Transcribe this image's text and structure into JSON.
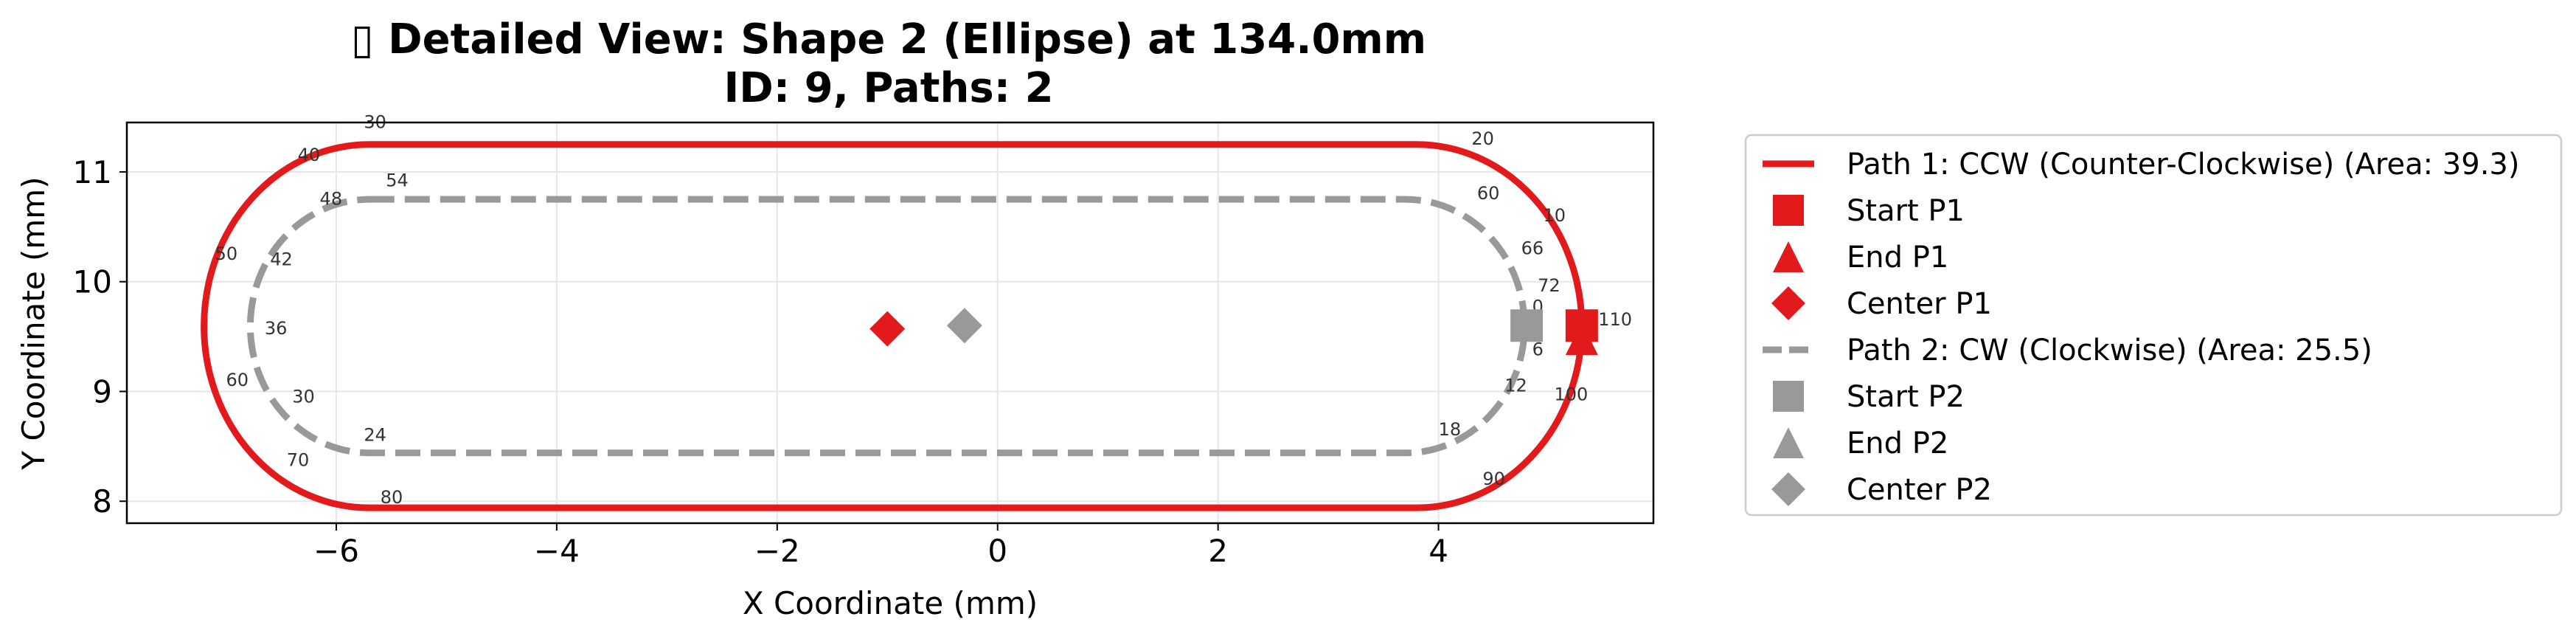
{
  "chart_data": {
    "type": "line",
    "title_line1": "▯ Detailed View: Shape 2 (Ellipse) at 134.0mm",
    "title_line2": "ID: 9, Paths: 2",
    "xlabel": "X Coordinate (mm)",
    "ylabel": "Y Coordinate (mm)",
    "xlim": [
      -7.9,
      5.95
    ],
    "ylim": [
      7.8,
      11.45
    ],
    "xticks": [
      -6,
      -4,
      -2,
      0,
      2,
      4
    ],
    "xtick_labels": [
      "−6",
      "−4",
      "−2",
      "0",
      "2",
      "4"
    ],
    "yticks": [
      8,
      9,
      10,
      11
    ],
    "ytick_labels": [
      "8",
      "9",
      "10",
      "11"
    ],
    "grid": true,
    "legend_position": "outside-right",
    "colors": {
      "path1": "#e31a1c",
      "path2": "#999999"
    },
    "series": [
      {
        "name": "Path 1: CCW (Counter-Clockwise) (Area: 39.3)",
        "style": "solid",
        "color": "#e31a1c",
        "straight_top": {
          "x": [
            -5.7,
            3.8
          ],
          "y": 11.25
        },
        "straight_bottom": {
          "x": [
            -5.7,
            3.8
          ],
          "y": 7.94
        },
        "right_cap_center": [
          3.8,
          9.595
        ],
        "left_cap_center": [
          -5.7,
          9.595
        ],
        "radius_x": 1.5,
        "radius_y": 1.655,
        "start": [
          5.3,
          9.6
        ],
        "end": [
          5.3,
          9.48
        ],
        "center": [
          -1.0,
          9.57
        ],
        "point_labels": [
          {
            "text": "0",
            "x": 5.3,
            "y": 9.6
          },
          {
            "text": "10",
            "x": 4.95,
            "y": 10.55
          },
          {
            "text": "20",
            "x": 4.3,
            "y": 11.25
          },
          {
            "text": "30",
            "x": -5.75,
            "y": 11.4
          },
          {
            "text": "40",
            "x": -6.35,
            "y": 11.1
          },
          {
            "text": "50",
            "x": -7.1,
            "y": 10.2
          },
          {
            "text": "60",
            "x": -7.0,
            "y": 9.05
          },
          {
            "text": "70",
            "x": -6.45,
            "y": 8.32
          },
          {
            "text": "80",
            "x": -5.6,
            "y": 7.98
          },
          {
            "text": "90",
            "x": 4.4,
            "y": 8.15
          },
          {
            "text": "100",
            "x": 5.05,
            "y": 8.92
          },
          {
            "text": "110",
            "x": 5.45,
            "y": 9.6
          }
        ]
      },
      {
        "name": "Path 2: CW (Clockwise) (Area: 25.5)",
        "style": "dashed",
        "color": "#999999",
        "straight_top": {
          "x": [
            -5.7,
            3.7
          ],
          "y": 10.75
        },
        "straight_bottom": {
          "x": [
            -5.7,
            3.7
          ],
          "y": 8.44
        },
        "right_cap_center": [
          3.7,
          9.595
        ],
        "left_cap_center": [
          -5.7,
          9.595
        ],
        "radius_x": 1.08,
        "radius_y": 1.155,
        "start": [
          4.8,
          9.6
        ],
        "end": [
          4.8,
          9.6
        ],
        "center": [
          -0.3,
          9.6
        ],
        "point_labels": [
          {
            "text": "0",
            "x": 4.85,
            "y": 9.72
          },
          {
            "text": "6",
            "x": 4.85,
            "y": 9.33
          },
          {
            "text": "12",
            "x": 4.6,
            "y": 9.0
          },
          {
            "text": "18",
            "x": 4.0,
            "y": 8.6
          },
          {
            "text": "24",
            "x": -5.75,
            "y": 8.55
          },
          {
            "text": "30",
            "x": -6.4,
            "y": 8.9
          },
          {
            "text": "36",
            "x": -6.65,
            "y": 9.52
          },
          {
            "text": "42",
            "x": -6.6,
            "y": 10.15
          },
          {
            "text": "48",
            "x": -6.15,
            "y": 10.7
          },
          {
            "text": "54",
            "x": -5.55,
            "y": 10.87
          },
          {
            "text": "60",
            "x": 4.35,
            "y": 10.75
          },
          {
            "text": "66",
            "x": 4.75,
            "y": 10.25
          },
          {
            "text": "72",
            "x": 4.9,
            "y": 9.91
          }
        ]
      }
    ],
    "legend": [
      {
        "label": "Path 1: CCW (Counter-Clockwise) (Area: 39.3)",
        "marker": "line-solid",
        "color": "#e31a1c"
      },
      {
        "label": "Start P1",
        "marker": "square",
        "color": "#e31a1c"
      },
      {
        "label": "End P1",
        "marker": "triangle",
        "color": "#e31a1c"
      },
      {
        "label": "Center P1",
        "marker": "diamond",
        "color": "#e31a1c"
      },
      {
        "label": "Path 2: CW (Clockwise) (Area: 25.5)",
        "marker": "line-dashed",
        "color": "#999999"
      },
      {
        "label": "Start P2",
        "marker": "square",
        "color": "#999999"
      },
      {
        "label": "End P2",
        "marker": "triangle",
        "color": "#999999"
      },
      {
        "label": "Center P2",
        "marker": "diamond",
        "color": "#999999"
      }
    ]
  }
}
